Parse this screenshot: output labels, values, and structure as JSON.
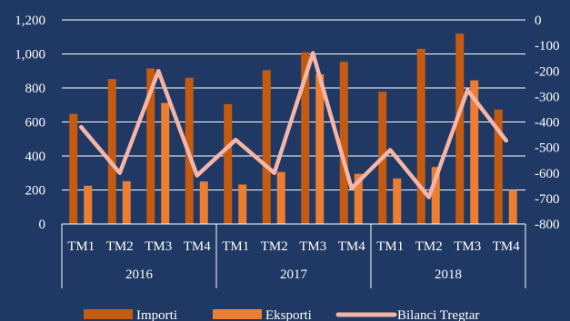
{
  "chart_data": {
    "type": "bar",
    "title": "",
    "xlabel": "",
    "ylabel": "",
    "groups": [
      "2016",
      "2017",
      "2018"
    ],
    "categories": [
      "TM1",
      "TM2",
      "TM3",
      "TM4",
      "TM1",
      "TM2",
      "TM3",
      "TM4",
      "TM1",
      "TM2",
      "TM3",
      "TM4"
    ],
    "series": [
      {
        "name": "Importi",
        "type": "bar",
        "axis": "left",
        "color": "#c55a11",
        "values": [
          648,
          853,
          915,
          860,
          705,
          905,
          1010,
          955,
          778,
          1030,
          1120,
          673
        ]
      },
      {
        "name": "Eksporti",
        "type": "bar",
        "axis": "left",
        "color": "#ed7d31",
        "values": [
          225,
          252,
          712,
          250,
          232,
          306,
          880,
          295,
          268,
          335,
          845,
          200
        ]
      },
      {
        "name": "Bilanci Tregtar",
        "type": "line",
        "axis": "right",
        "color": "#f4b6a8",
        "values": [
          -420,
          -600,
          -200,
          -610,
          -470,
          -600,
          -130,
          -660,
          -510,
          -695,
          -275,
          -473
        ]
      }
    ],
    "ylim": [
      0,
      1200
    ],
    "yticks": [
      "0",
      "200",
      "400",
      "600",
      "800",
      "1,000",
      "1,200"
    ],
    "y2lim": [
      -800,
      0
    ],
    "y2ticks": [
      "-800",
      "-700",
      "-600",
      "-500",
      "-400",
      "-300",
      "-200",
      "-100",
      "0"
    ],
    "grid": true,
    "legend": "bottom"
  }
}
